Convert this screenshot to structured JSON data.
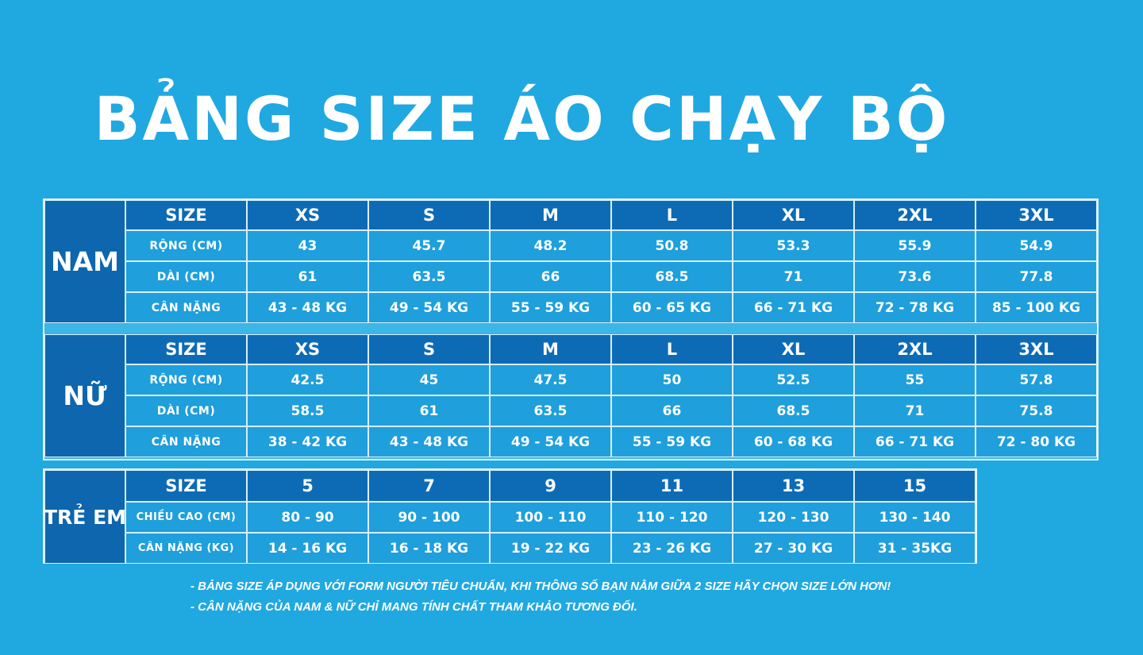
{
  "title": "BẢNG SIZE ÁO CHẠY BỘ",
  "colors": {
    "background": "#20a8e1",
    "header_cell": "#0d6bb6",
    "value_cell": "#1f9fdc",
    "text": "#ffffff"
  },
  "sections": [
    {
      "group": "NAM",
      "header": [
        "SIZE",
        "XS",
        "S",
        "M",
        "L",
        "XL",
        "2XL",
        "3XL"
      ],
      "rows": [
        {
          "label": "RỘNG (CM)",
          "values": [
            "43",
            "45.7",
            "48.2",
            "50.8",
            "53.3",
            "55.9",
            "54.9"
          ]
        },
        {
          "label": "DÀI (CM)",
          "values": [
            "61",
            "63.5",
            "66",
            "68.5",
            "71",
            "73.6",
            "77.8"
          ]
        },
        {
          "label": "CÂN NẶNG",
          "values": [
            "43 - 48 KG",
            "49 - 54 KG",
            "55 - 59 KG",
            "60 - 65 KG",
            "66 - 71 KG",
            "72 - 78 KG",
            "85 - 100 KG"
          ]
        }
      ]
    },
    {
      "group": "NỮ",
      "header": [
        "SIZE",
        "XS",
        "S",
        "M",
        "L",
        "XL",
        "2XL",
        "3XL"
      ],
      "rows": [
        {
          "label": "RỘNG (CM)",
          "values": [
            "42.5",
            "45",
            "47.5",
            "50",
            "52.5",
            "55",
            "57.8"
          ]
        },
        {
          "label": "DÀI (CM)",
          "values": [
            "58.5",
            "61",
            "63.5",
            "66",
            "68.5",
            "71",
            "75.8"
          ]
        },
        {
          "label": "CÂN NẶNG",
          "values": [
            "38 - 42 KG",
            "43 - 48 KG",
            "49 - 54 KG",
            "55 - 59 KG",
            "60 - 68 KG",
            "66 - 71 KG",
            "72 - 80 KG"
          ]
        }
      ]
    },
    {
      "group": "TRẺ EM",
      "header": [
        "SIZE",
        "5",
        "7",
        "9",
        "11",
        "13",
        "15"
      ],
      "rows": [
        {
          "label": "CHIỀU CAO (CM)",
          "values": [
            "80 - 90",
            "90 - 100",
            "100 - 110",
            "110 - 120",
            "120 - 130",
            "130 - 140"
          ]
        },
        {
          "label": "CÂN NẶNG (KG)",
          "values": [
            "14 - 16 KG",
            "16 - 18 KG",
            "19 - 22 KG",
            "23 - 26 KG",
            "27 - 30 KG",
            "31 - 35KG"
          ]
        }
      ]
    }
  ],
  "notes": [
    "- BẢNG SIZE ÁP DỤNG VỚI FORM NGƯỜI TIÊU CHUẨN, KHI THÔNG SỐ BẠN NẰM GIỮA 2 SIZE HÃY CHỌN SIZE LỚN HƠN!",
    "- CÂN NẶNG CỦA NAM & NỮ CHỈ MANG TÍNH CHẤT THAM KHẢO TƯƠNG ĐỐI."
  ]
}
